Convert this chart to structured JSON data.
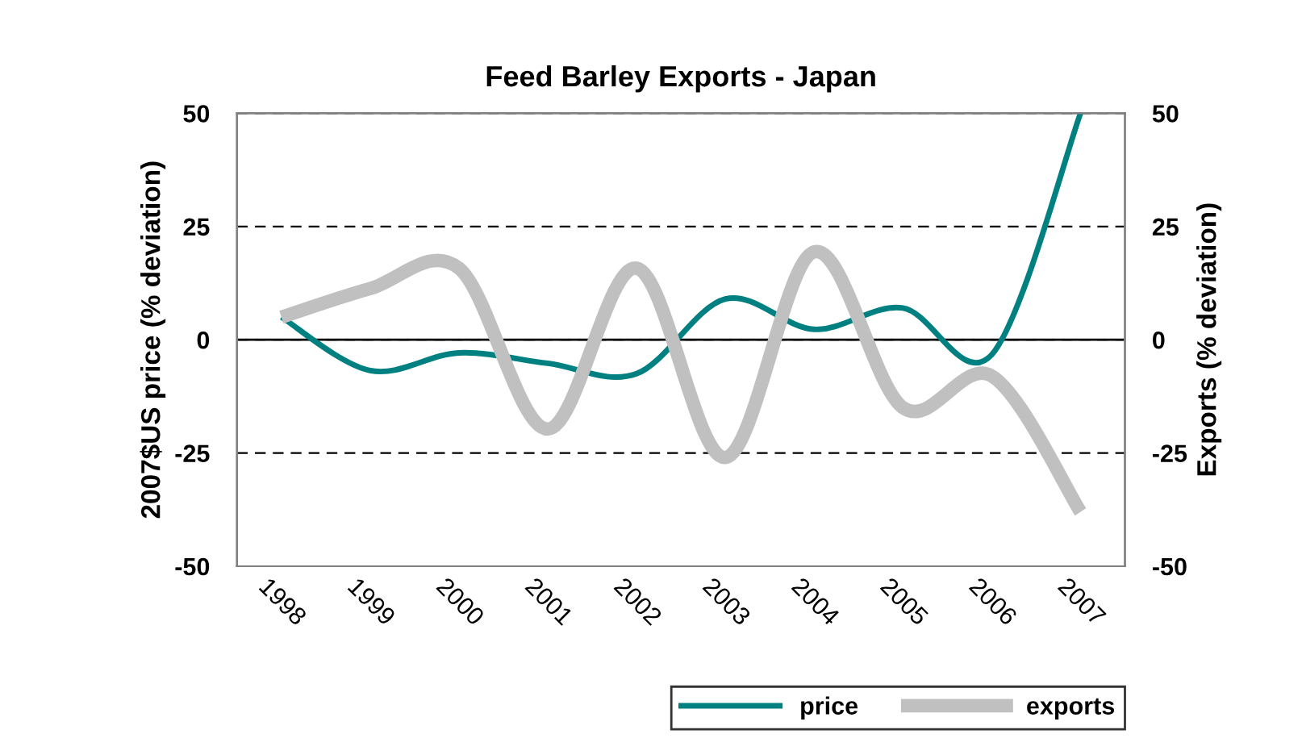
{
  "chart_data": {
    "type": "line",
    "title": "Feed Barley Exports - Japan",
    "ylabel": "2007$US price (% deviation)",
    "y2label": "Exports (% deviation)",
    "categories": [
      "1998",
      "1999",
      "2000",
      "2001",
      "2002",
      "2003",
      "2004",
      "2005",
      "2006",
      "2007"
    ],
    "series": [
      {
        "name": "price",
        "color": "#008080",
        "values": [
          5,
          -6.8,
          -2.9,
          -5.2,
          -7.5,
          9,
          2.3,
          7,
          -3.3,
          50
        ]
      },
      {
        "name": "exports",
        "color": "#c0c0c0",
        "axis": "y2",
        "values": [
          5,
          11.3,
          15.8,
          -19.7,
          15.8,
          -26,
          19.4,
          -15,
          -8,
          -38
        ]
      }
    ],
    "ylim": [
      -50,
      50
    ],
    "yticks": [
      -50,
      -25,
      0,
      25,
      50
    ],
    "y2lim": [
      -50,
      50
    ],
    "y2ticks": [
      -50,
      -25,
      0,
      25,
      50
    ],
    "grid": "y",
    "line_style": "solid",
    "legend": "bottom right",
    "ref_lines": [
      {
        "axis": "y",
        "value": 0,
        "color": "#000000",
        "line_style": "solid"
      }
    ]
  }
}
